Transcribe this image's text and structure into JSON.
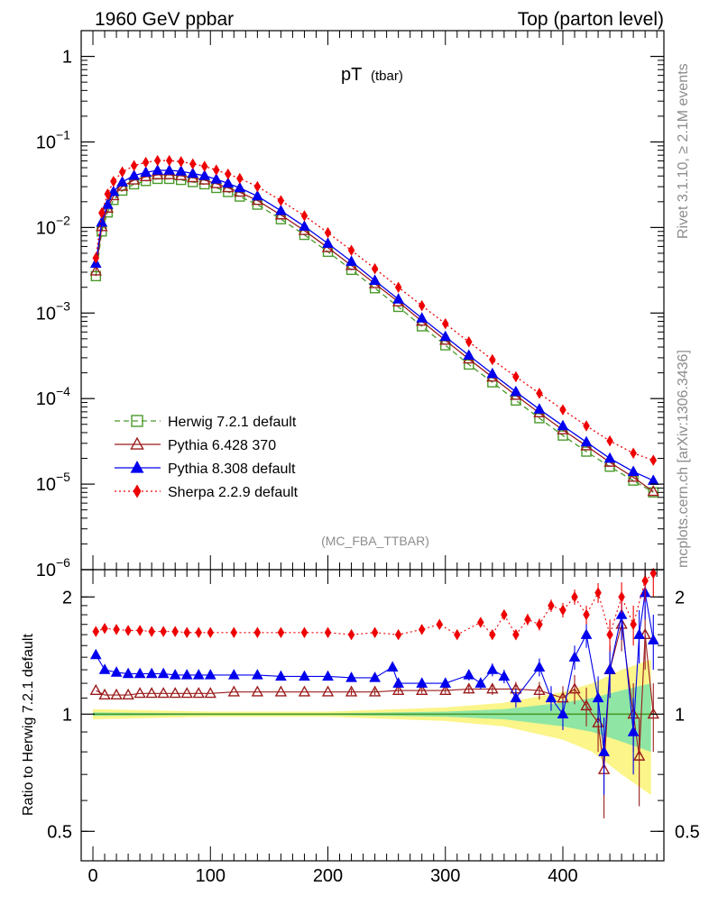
{
  "header": {
    "left": "1960 GeV ppbar",
    "right": "Top (parton level)"
  },
  "side_labels": {
    "rivet": "Rivet 3.1.10, ≥ 2.1M events",
    "mcplots": "mcplots.cern.ch [arXiv:1306.3436]"
  },
  "chart_data": [
    {
      "type": "line",
      "panel": "main",
      "title": "pT",
      "title_sub": "(tbar)",
      "analysis_label": "(MC_FBA_TTBAR)",
      "yscale": "log",
      "ylim": [
        1e-06,
        2
      ],
      "xlim": [
        -10,
        486
      ],
      "y_ticks": [
        {
          "value": 1,
          "base": "1",
          "exp": ""
        },
        {
          "value": 0.1,
          "base": "10",
          "exp": "−1"
        },
        {
          "value": 0.01,
          "base": "10",
          "exp": "−2"
        },
        {
          "value": 0.001,
          "base": "10",
          "exp": "−3"
        },
        {
          "value": 0.0001,
          "base": "10",
          "exp": "−4"
        },
        {
          "value": 1e-05,
          "base": "10",
          "exp": "−5"
        },
        {
          "value": 1e-06,
          "base": "10",
          "exp": "−6"
        }
      ],
      "legend_position": "lower-left",
      "series": [
        {
          "name": "Herwig 7.2.1 default",
          "color": "#4a9a2a",
          "marker": "open-square",
          "line": "dashed",
          "x": [
            2.5,
            7.5,
            12.5,
            17.5,
            25,
            35,
            45,
            55,
            65,
            75,
            85,
            95,
            105,
            115,
            125,
            140,
            160,
            180,
            200,
            220,
            240,
            260,
            280,
            300,
            320,
            340,
            360,
            380,
            400,
            420,
            440,
            460,
            477
          ],
          "y": [
            0.0027,
            0.009,
            0.015,
            0.021,
            0.027,
            0.032,
            0.035,
            0.037,
            0.037,
            0.036,
            0.034,
            0.032,
            0.029,
            0.026,
            0.023,
            0.0185,
            0.0125,
            0.0082,
            0.0052,
            0.0032,
            0.00195,
            0.00118,
            0.0007,
            0.00042,
            0.00025,
            0.000155,
            9.5e-05,
            5.9e-05,
            3.7e-05,
            2.4e-05,
            1.6e-05,
            1.1e-05,
            8e-06
          ]
        },
        {
          "name": "Pythia 6.428 370",
          "color": "#9b1c1c",
          "marker": "open-triangle",
          "line": "solid",
          "x": [
            2.5,
            7.5,
            12.5,
            17.5,
            25,
            35,
            45,
            55,
            65,
            75,
            85,
            95,
            105,
            115,
            125,
            140,
            160,
            180,
            200,
            220,
            240,
            260,
            280,
            300,
            320,
            340,
            360,
            380,
            400,
            420,
            440,
            460,
            477
          ],
          "y": [
            0.0031,
            0.0102,
            0.0168,
            0.0235,
            0.0302,
            0.0358,
            0.0392,
            0.0413,
            0.0413,
            0.0403,
            0.0381,
            0.0358,
            0.0325,
            0.0291,
            0.0258,
            0.0207,
            0.014,
            0.0092,
            0.0058,
            0.0036,
            0.0022,
            0.00135,
            0.0008,
            0.00048,
            0.00029,
            0.000178,
            0.000109,
            6.8e-05,
            4.3e-05,
            2.8e-05,
            1.8e-05,
            1.2e-05,
            8.2e-06
          ]
        },
        {
          "name": "Pythia 8.308 default",
          "color": "#0000ee",
          "marker": "filled-triangle",
          "line": "solid",
          "x": [
            2.5,
            7.5,
            12.5,
            17.5,
            25,
            35,
            45,
            55,
            65,
            75,
            85,
            95,
            105,
            115,
            125,
            140,
            160,
            180,
            200,
            220,
            240,
            260,
            280,
            300,
            320,
            340,
            360,
            380,
            400,
            420,
            440,
            460,
            477
          ],
          "y": [
            0.0038,
            0.0115,
            0.0185,
            0.0262,
            0.034,
            0.0405,
            0.0441,
            0.0465,
            0.0465,
            0.0454,
            0.0428,
            0.0403,
            0.0366,
            0.0328,
            0.029,
            0.0233,
            0.0157,
            0.0103,
            0.0065,
            0.004,
            0.0024,
            0.00145,
            0.00087,
            0.00053,
            0.00032,
            0.000195,
            0.00012,
            7.5e-05,
            4.8e-05,
            3.1e-05,
            2e-05,
            1.4e-05,
            1.1e-05
          ]
        },
        {
          "name": "Sherpa 2.2.9 default",
          "color": "#ee0000",
          "marker": "filled-diamond",
          "line": "dotted",
          "x": [
            2.5,
            7.5,
            12.5,
            17.5,
            25,
            35,
            45,
            55,
            65,
            75,
            85,
            95,
            105,
            115,
            125,
            140,
            160,
            180,
            200,
            220,
            240,
            260,
            280,
            300,
            320,
            340,
            360,
            380,
            400,
            420,
            440,
            460,
            477
          ],
          "y": [
            0.0044,
            0.0148,
            0.0246,
            0.0346,
            0.0446,
            0.0528,
            0.0577,
            0.0605,
            0.0605,
            0.0588,
            0.0554,
            0.0519,
            0.0469,
            0.0421,
            0.0374,
            0.0301,
            0.0206,
            0.0137,
            0.0087,
            0.0054,
            0.0033,
            0.002,
            0.00122,
            0.00075,
            0.00046,
            0.000285,
            0.00018,
            0.000115,
            7.4e-05,
            4.8e-05,
            3.2e-05,
            2.3e-05,
            1.9e-05
          ]
        }
      ]
    },
    {
      "type": "line",
      "panel": "ratio",
      "ylabel": "Ratio to Herwig 7.2.1 default",
      "yscale": "log",
      "ylim": [
        0.42,
        2.35
      ],
      "xlim": [
        -10,
        486
      ],
      "y_ticks": [
        0.5,
        1,
        2
      ],
      "x_ticks": [
        0,
        100,
        200,
        300,
        400
      ],
      "reference_line": 1,
      "uncertainty_band": {
        "x": [
          0,
          100,
          200,
          300,
          350,
          400,
          425,
          450,
          475
        ],
        "yellow_low": [
          0.97,
          0.985,
          0.985,
          0.96,
          0.93,
          0.86,
          0.8,
          0.7,
          0.62
        ],
        "yellow_high": [
          1.03,
          1.015,
          1.015,
          1.04,
          1.07,
          1.14,
          1.2,
          1.3,
          1.38
        ],
        "green_low": [
          0.99,
          0.995,
          0.995,
          0.985,
          0.97,
          0.93,
          0.9,
          0.85,
          0.8
        ],
        "green_high": [
          1.01,
          1.005,
          1.005,
          1.015,
          1.03,
          1.07,
          1.1,
          1.15,
          1.2
        ]
      },
      "series": [
        {
          "name": "Pythia 6.428 370",
          "color": "#9b1c1c",
          "marker": "open-triangle",
          "x": [
            2.5,
            10,
            20,
            30,
            40,
            50,
            60,
            70,
            80,
            90,
            100,
            120,
            140,
            160,
            180,
            200,
            220,
            240,
            260,
            280,
            300,
            320,
            340,
            360,
            380,
            400,
            410,
            420,
            430,
            435,
            440,
            450,
            460,
            465,
            470,
            477
          ],
          "y": [
            1.15,
            1.12,
            1.12,
            1.12,
            1.13,
            1.13,
            1.13,
            1.13,
            1.13,
            1.13,
            1.13,
            1.14,
            1.14,
            1.14,
            1.14,
            1.14,
            1.14,
            1.14,
            1.15,
            1.15,
            1.15,
            1.16,
            1.16,
            1.16,
            1.15,
            1.1,
            1.16,
            1.05,
            0.95,
            0.72,
            1.3,
            1.7,
            1.0,
            0.78,
            1.6,
            1.0
          ],
          "err": [
            0.01,
            0.01,
            0.01,
            0.01,
            0.01,
            0.01,
            0.01,
            0.01,
            0.01,
            0.01,
            0.01,
            0.01,
            0.01,
            0.01,
            0.01,
            0.01,
            0.02,
            0.02,
            0.02,
            0.02,
            0.02,
            0.03,
            0.04,
            0.05,
            0.06,
            0.08,
            0.1,
            0.12,
            0.15,
            0.18,
            0.2,
            0.25,
            0.2,
            0.2,
            0.3,
            0.2
          ]
        },
        {
          "name": "Pythia 8.308 default",
          "color": "#0000ee",
          "marker": "filled-triangle",
          "x": [
            2.5,
            10,
            20,
            30,
            40,
            50,
            60,
            70,
            80,
            90,
            100,
            120,
            140,
            160,
            180,
            200,
            220,
            240,
            255,
            260,
            280,
            300,
            320,
            330,
            340,
            350,
            360,
            380,
            390,
            400,
            410,
            420,
            430,
            435,
            440,
            450,
            460,
            465,
            470,
            477
          ],
          "y": [
            1.42,
            1.3,
            1.28,
            1.27,
            1.27,
            1.27,
            1.27,
            1.26,
            1.26,
            1.26,
            1.26,
            1.26,
            1.26,
            1.25,
            1.25,
            1.25,
            1.24,
            1.24,
            1.32,
            1.2,
            1.2,
            1.2,
            1.26,
            1.2,
            1.3,
            1.25,
            1.1,
            1.32,
            1.1,
            1.0,
            1.4,
            1.6,
            1.1,
            0.8,
            1.3,
            1.8,
            0.9,
            1.6,
            2.05,
            1.55
          ],
          "err": [
            0.01,
            0.01,
            0.01,
            0.01,
            0.01,
            0.01,
            0.01,
            0.01,
            0.01,
            0.01,
            0.01,
            0.01,
            0.01,
            0.01,
            0.01,
            0.01,
            0.02,
            0.02,
            0.02,
            0.02,
            0.02,
            0.03,
            0.04,
            0.04,
            0.05,
            0.05,
            0.06,
            0.07,
            0.08,
            0.09,
            0.1,
            0.12,
            0.15,
            0.18,
            0.2,
            0.25,
            0.2,
            0.25,
            0.3,
            0.25
          ]
        },
        {
          "name": "Sherpa 2.2.9 default",
          "color": "#ee0000",
          "marker": "filled-diamond",
          "x": [
            2.5,
            10,
            20,
            30,
            40,
            50,
            60,
            70,
            80,
            90,
            100,
            120,
            140,
            160,
            180,
            200,
            220,
            240,
            260,
            280,
            295,
            310,
            330,
            340,
            350,
            360,
            370,
            380,
            390,
            400,
            410,
            420,
            430,
            440,
            450,
            460,
            470,
            477
          ],
          "y": [
            1.63,
            1.66,
            1.65,
            1.64,
            1.64,
            1.63,
            1.63,
            1.63,
            1.62,
            1.62,
            1.62,
            1.62,
            1.62,
            1.62,
            1.62,
            1.62,
            1.6,
            1.62,
            1.6,
            1.65,
            1.7,
            1.6,
            1.72,
            1.6,
            1.8,
            1.6,
            1.75,
            1.7,
            1.9,
            1.85,
            2.0,
            1.8,
            2.05,
            1.6,
            2.0,
            1.7,
            2.2,
            2.3
          ],
          "err": [
            0.01,
            0.01,
            0.01,
            0.01,
            0.01,
            0.01,
            0.01,
            0.01,
            0.01,
            0.01,
            0.01,
            0.01,
            0.01,
            0.01,
            0.01,
            0.01,
            0.02,
            0.02,
            0.02,
            0.02,
            0.03,
            0.03,
            0.04,
            0.04,
            0.05,
            0.05,
            0.06,
            0.06,
            0.07,
            0.08,
            0.09,
            0.1,
            0.12,
            0.15,
            0.18,
            0.2,
            0.25,
            0.3
          ]
        }
      ]
    }
  ]
}
